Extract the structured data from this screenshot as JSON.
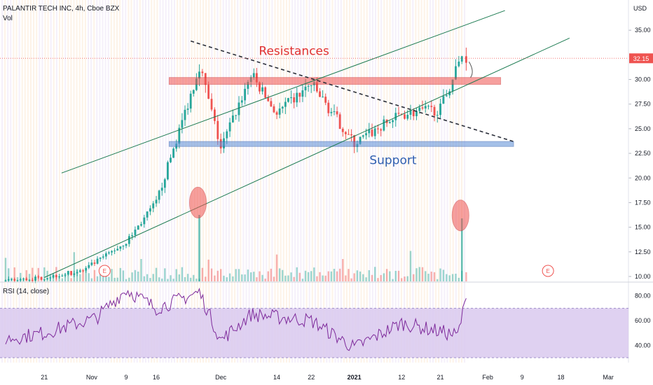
{
  "header": {
    "title": "PALANTIR TECH INC, 4h, Cboe BZX",
    "volume_label": "Vol",
    "currency": "USD"
  },
  "rsi": {
    "label": "RSI (14, close)",
    "ticks": [
      "80.00",
      "60.00",
      "40.00"
    ],
    "band_upper": 70,
    "band_lower": 30,
    "band_color": "#d9c9ef",
    "line_color": "#7e2a9b"
  },
  "annotations": {
    "resistance_label": "Resistances",
    "support_label": "Support",
    "earnings_marker": "E"
  },
  "colors": {
    "up": "#26a69a",
    "down": "#ef5350",
    "resistance_zone": "#ef5350",
    "support_zone": "#5b8dd6",
    "trend_line": "#1a7a50",
    "last_price_line": "#ef5350"
  },
  "chart_data": [
    {
      "type": "candlestick",
      "title": "PALANTIR TECH INC, 4h, Cboe BZX",
      "x_ticks": [
        "21",
        "Nov",
        "9",
        "16",
        "Dec",
        "14",
        "22",
        "2021",
        "12",
        "21",
        "Feb",
        "9",
        "18",
        "Mar"
      ],
      "y_ticks": [
        10,
        12.5,
        15,
        17.5,
        20,
        22.5,
        25,
        27.5,
        30,
        35
      ],
      "ylim": [
        9.5,
        37.5
      ],
      "last_price": 32.15,
      "last_price_label": "32.15",
      "series": [
        {
          "date": "2020-10-12",
          "close": 9.5
        },
        {
          "date": "2020-10-21",
          "close": 9.9
        },
        {
          "date": "2020-10-30",
          "close": 10.6
        },
        {
          "date": "2020-11-09",
          "close": 13.5
        },
        {
          "date": "2020-11-16",
          "close": 17.5
        },
        {
          "date": "2020-11-24",
          "close": 28.5
        },
        {
          "date": "2020-11-26",
          "close": 31.5
        },
        {
          "date": "2020-12-01",
          "close": 23.0
        },
        {
          "date": "2020-12-08",
          "close": 30.5
        },
        {
          "date": "2020-12-14",
          "close": 26.5
        },
        {
          "date": "2020-12-22",
          "close": 29.5
        },
        {
          "date": "2021-01-01",
          "close": 23.5
        },
        {
          "date": "2021-01-12",
          "close": 26.5
        },
        {
          "date": "2021-01-21",
          "close": 27.0
        },
        {
          "date": "2021-01-26",
          "close": 32.5
        },
        {
          "date": "2021-01-27",
          "close": 32.15
        }
      ],
      "zones": [
        {
          "name": "Resistances",
          "low": 29.5,
          "high": 30.2
        },
        {
          "name": "Support",
          "low": 23.2,
          "high": 23.7
        }
      ]
    },
    {
      "type": "line",
      "title": "RSI (14, close)",
      "y_ticks": [
        80,
        60,
        40
      ],
      "ylim": [
        26,
        90
      ],
      "series": [
        {
          "date": "2020-10-12",
          "value": 45
        },
        {
          "date": "2020-10-21",
          "value": 50
        },
        {
          "date": "2020-11-02",
          "value": 62
        },
        {
          "date": "2020-11-09",
          "value": 85
        },
        {
          "date": "2020-11-16",
          "value": 70
        },
        {
          "date": "2020-11-26",
          "value": 83
        },
        {
          "date": "2020-12-01",
          "value": 44
        },
        {
          "date": "2020-12-08",
          "value": 65
        },
        {
          "date": "2020-12-22",
          "value": 60
        },
        {
          "date": "2021-01-01",
          "value": 38
        },
        {
          "date": "2021-01-12",
          "value": 58
        },
        {
          "date": "2021-01-25",
          "value": 48
        },
        {
          "date": "2021-01-27",
          "value": 78
        }
      ]
    }
  ]
}
